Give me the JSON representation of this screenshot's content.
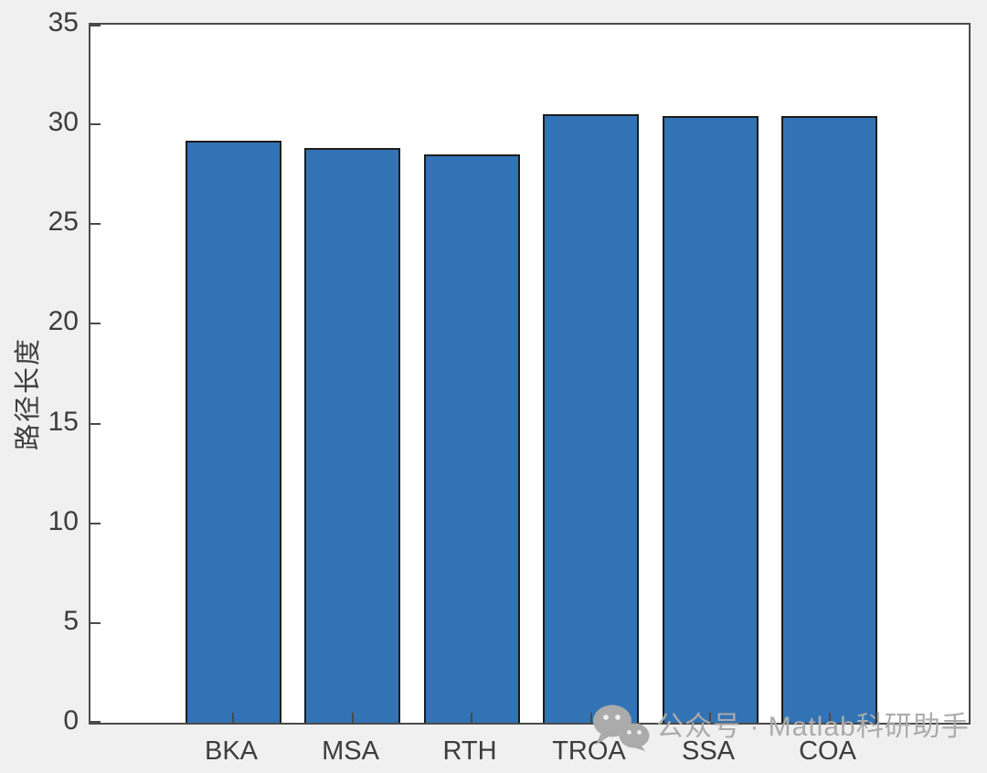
{
  "figure": {
    "background_color": "#f0f0f0",
    "plot_background_color": "#ffffff",
    "axis_color": "#4a4a4a",
    "tick_label_color": "#3d3d3d"
  },
  "chart_data": {
    "type": "bar",
    "title": "",
    "xlabel": "",
    "ylabel": "路径长度",
    "categories": [
      "BKA",
      "MSA",
      "RTH",
      "TROA",
      "SSA",
      "COA"
    ],
    "values": [
      29.2,
      28.8,
      28.5,
      30.5,
      30.4,
      30.4
    ],
    "ylim": [
      0,
      35
    ],
    "yticks": [
      0,
      5,
      10,
      15,
      20,
      25,
      30,
      35
    ],
    "grid": false,
    "legend": null,
    "bar_color": "#3273b5",
    "bar_edge_color": "#1c1c1c"
  },
  "watermark": {
    "icon": "wechat-icon",
    "text": "公众号 · Matlab科研助手",
    "color": "#ababab"
  }
}
